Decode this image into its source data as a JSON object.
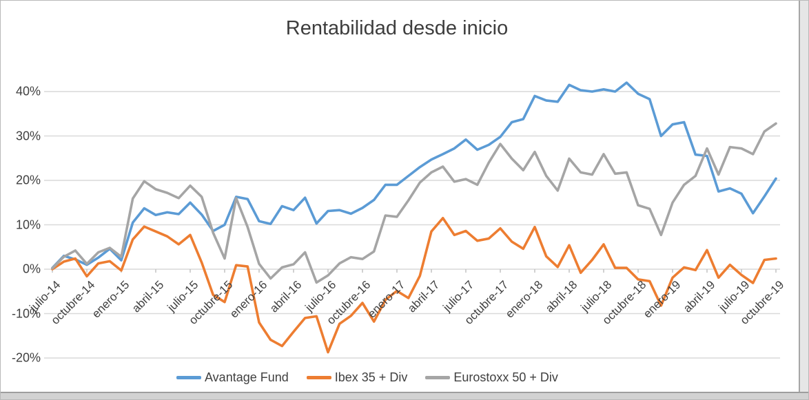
{
  "chart": {
    "title": "Rentabilidad desde inicio",
    "y_axis_labels": [
      "40%",
      "30%",
      "20%",
      "10%",
      "0%",
      "-10%",
      "-20%"
    ],
    "x_tick_labels": [
      "julio-14",
      "octubre-14",
      "enero-15",
      "abril-15",
      "julio-15",
      "octubre-15",
      "enero-16",
      "abril-16",
      "julio-16",
      "octubre-16",
      "enero-17",
      "abril-17",
      "julio-17",
      "octubre-17",
      "enero-18",
      "abril-18",
      "julio-18",
      "octubre-18",
      "enero-19",
      "abril-19",
      "julio-19",
      "octubre-19"
    ],
    "colors": {
      "avantage": "#5B9BD5",
      "ibex": "#ED7D31",
      "eurostoxx": "#A5A5A5",
      "gridline": "#D9D9D9",
      "tick": "#BFBFBF",
      "text": "#404040"
    }
  },
  "chart_data": {
    "type": "line",
    "title": "Rentabilidad desde inicio",
    "unit": "%",
    "ylim": [
      -20,
      45
    ],
    "gridlines_y": [
      40,
      30,
      20,
      10,
      0,
      -10,
      -20
    ],
    "grid": true,
    "legend_position": "bottom",
    "x_label_interval_months": 3,
    "x": [
      "julio-14",
      "agosto-14",
      "septiembre-14",
      "octubre-14",
      "noviembre-14",
      "diciembre-14",
      "enero-15",
      "febrero-15",
      "marzo-15",
      "abril-15",
      "mayo-15",
      "junio-15",
      "julio-15",
      "agosto-15",
      "septiembre-15",
      "octubre-15",
      "noviembre-15",
      "diciembre-15",
      "enero-16",
      "febrero-16",
      "marzo-16",
      "abril-16",
      "mayo-16",
      "junio-16",
      "julio-16",
      "agosto-16",
      "septiembre-16",
      "octubre-16",
      "noviembre-16",
      "diciembre-16",
      "enero-17",
      "febrero-17",
      "marzo-17",
      "abril-17",
      "mayo-17",
      "junio-17",
      "julio-17",
      "agosto-17",
      "septiembre-17",
      "octubre-17",
      "noviembre-17",
      "diciembre-17",
      "enero-18",
      "febrero-18",
      "marzo-18",
      "abril-18",
      "mayo-18",
      "junio-18",
      "julio-18",
      "agosto-18",
      "septiembre-18",
      "octubre-18",
      "noviembre-18",
      "diciembre-18",
      "enero-19",
      "febrero-19",
      "marzo-19",
      "abril-19",
      "mayo-19",
      "junio-19",
      "julio-19",
      "agosto-19",
      "septiembre-19",
      "octubre-19"
    ],
    "series": [
      {
        "name": "Avantage Fund",
        "color": "#5B9BD5",
        "values": [
          0.3,
          3.0,
          2.2,
          1.0,
          2.6,
          4.6,
          2.0,
          10.5,
          13.7,
          12.2,
          12.8,
          12.4,
          15.0,
          12.3,
          8.6,
          10.0,
          16.3,
          15.8,
          10.8,
          10.2,
          14.2,
          13.3,
          16.1,
          10.3,
          13.1,
          13.3,
          12.5,
          13.8,
          15.6,
          19.0,
          19.0,
          21.0,
          23.0,
          24.7,
          25.9,
          27.2,
          29.2,
          26.9,
          28.0,
          29.8,
          33.1,
          33.8,
          39.0,
          38.0,
          37.7,
          41.5,
          40.3,
          40.0,
          40.5,
          40.0,
          42.0,
          39.5,
          38.3,
          30.0,
          32.6,
          33.1,
          25.8,
          25.5,
          17.5,
          18.2,
          17.0,
          12.6,
          16.4,
          20.4
        ]
      },
      {
        "name": "Ibex 35 + Div",
        "color": "#ED7D31",
        "values": [
          0.0,
          1.7,
          2.4,
          -1.6,
          1.3,
          1.8,
          -0.3,
          6.7,
          9.6,
          8.5,
          7.4,
          5.6,
          7.7,
          1.5,
          -5.8,
          -7.4,
          0.9,
          0.6,
          -12.0,
          -15.9,
          -17.3,
          -14.1,
          -11.0,
          -10.6,
          -18.7,
          -12.3,
          -10.5,
          -7.6,
          -11.8,
          -6.9,
          -4.9,
          -6.5,
          -1.5,
          8.5,
          11.5,
          7.7,
          8.6,
          6.4,
          6.9,
          9.2,
          6.2,
          4.6,
          9.5,
          2.9,
          0.5,
          5.4,
          -0.8,
          2.1,
          5.6,
          0.3,
          0.3,
          -2.3,
          -2.7,
          -8.2,
          -1.9,
          0.4,
          -0.2,
          4.3,
          -1.9,
          1.0,
          -1.3,
          -3.1,
          2.1,
          2.4
        ]
      },
      {
        "name": "Eurostoxx 50 + Div",
        "color": "#A5A5A5",
        "values": [
          0.2,
          2.8,
          4.2,
          1.2,
          3.8,
          4.8,
          2.8,
          15.9,
          19.8,
          18.0,
          17.2,
          16.0,
          18.8,
          16.3,
          8.2,
          2.4,
          16.0,
          9.5,
          1.2,
          -2.1,
          0.4,
          1.1,
          3.8,
          -3.0,
          -1.4,
          1.3,
          2.7,
          2.3,
          4.0,
          12.1,
          11.8,
          15.5,
          19.5,
          21.8,
          23.1,
          19.7,
          20.3,
          19.0,
          24.0,
          28.2,
          24.9,
          22.3,
          26.4,
          21.0,
          17.7,
          24.9,
          21.8,
          21.3,
          25.9,
          21.5,
          21.8,
          14.4,
          13.6,
          7.7,
          15.0,
          19.0,
          21.0,
          27.2,
          21.3,
          27.5,
          27.2,
          25.9,
          31.0,
          32.8
        ]
      }
    ]
  }
}
